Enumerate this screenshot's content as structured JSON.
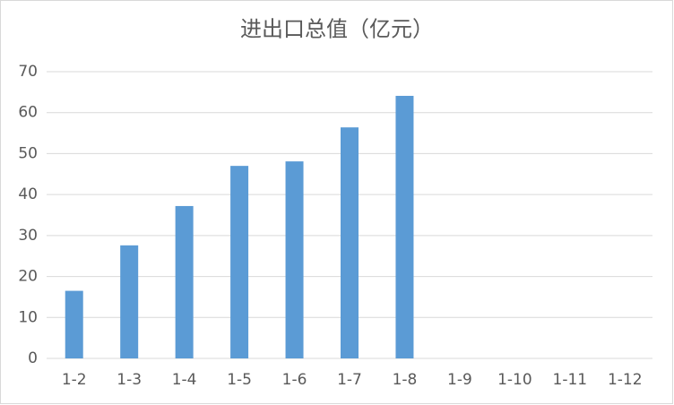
{
  "chart_data": {
    "type": "bar",
    "title": "进出口总值（亿元）",
    "categories": [
      "1-2",
      "1-3",
      "1-4",
      "1-5",
      "1-6",
      "1-7",
      "1-8",
      "1-9",
      "1-10",
      "1-11",
      "1-12"
    ],
    "values": [
      16.5,
      27.6,
      37.2,
      47.0,
      48.1,
      56.4,
      64.1,
      null,
      null,
      null,
      null
    ],
    "color": "#5b9bd5",
    "ylim": [
      0,
      70
    ],
    "yticks": [
      0,
      10,
      20,
      30,
      40,
      50,
      60,
      70
    ],
    "grid": true
  }
}
